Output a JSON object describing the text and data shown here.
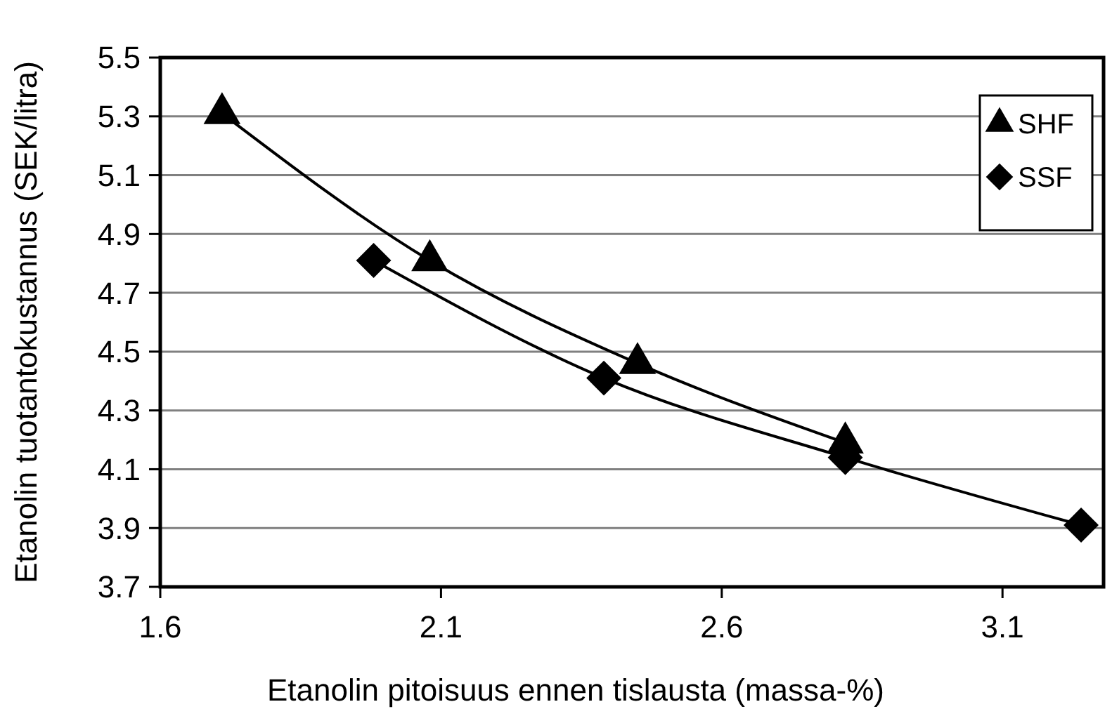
{
  "chart_data": {
    "type": "line",
    "xlabel": "Etanolin pitoisuus ennen tislausta (massa-%)",
    "ylabel": "Etanolin tuotantokustannus (SEK/litra)",
    "xlim": [
      1.6,
      3.28
    ],
    "xticks": [
      1.6,
      2.1,
      2.6,
      3.1
    ],
    "ylim": [
      3.7,
      5.5
    ],
    "yticks": [
      3.7,
      3.9,
      4.1,
      4.3,
      4.5,
      4.7,
      4.9,
      5.1,
      5.3,
      5.5
    ],
    "grid": "y",
    "legend": "top right",
    "line_style": "solid",
    "series": [
      {
        "name": "SHF",
        "color": "#000000",
        "marker": "triangle",
        "x": [
          1.71,
          2.08,
          2.45,
          2.82
        ],
        "values": [
          5.31,
          4.81,
          4.46,
          4.19
        ]
      },
      {
        "name": "SSF",
        "color": "#000000",
        "marker": "diamond",
        "x": [
          1.98,
          2.39,
          2.82,
          3.24
        ],
        "values": [
          4.81,
          4.41,
          4.14,
          3.91
        ]
      }
    ]
  }
}
